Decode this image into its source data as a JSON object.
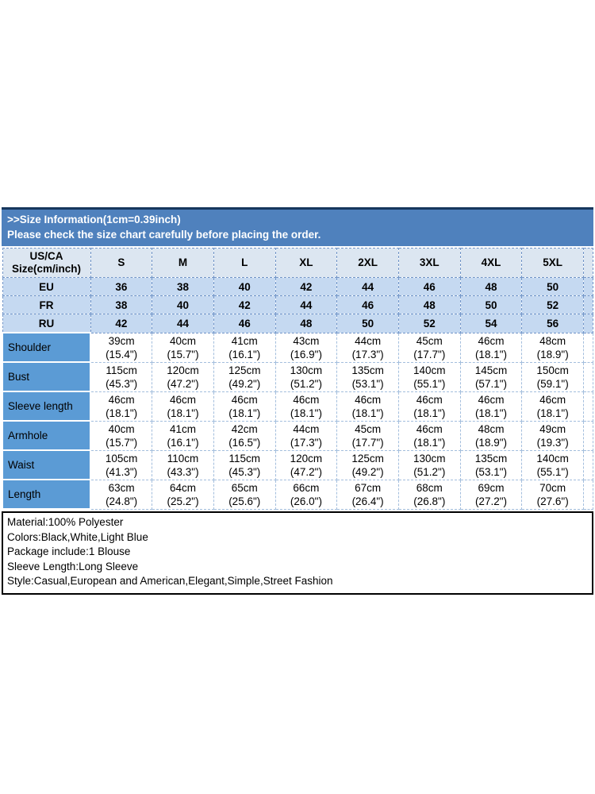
{
  "banner": {
    "line1": ">>Size Information(1cm=0.39inch)",
    "line2": "Please check the size chart carefully before placing the order."
  },
  "table": {
    "corner": {
      "line1": "US/CA",
      "line2": "Size(cm/inch)"
    },
    "sizes": [
      "S",
      "M",
      "L",
      "XL",
      "2XL",
      "3XL",
      "4XL",
      "5XL"
    ],
    "region_rows": [
      {
        "label": "EU",
        "values": [
          "36",
          "38",
          "40",
          "42",
          "44",
          "46",
          "48",
          "50"
        ]
      },
      {
        "label": "FR",
        "values": [
          "38",
          "40",
          "42",
          "44",
          "46",
          "48",
          "50",
          "52"
        ]
      },
      {
        "label": "RU",
        "values": [
          "42",
          "44",
          "46",
          "48",
          "50",
          "52",
          "54",
          "56"
        ]
      }
    ],
    "measurement_rows": [
      {
        "label": "Shoulder",
        "cm": [
          "39cm",
          "40cm",
          "41cm",
          "43cm",
          "44cm",
          "45cm",
          "46cm",
          "48cm"
        ],
        "inch": [
          "(15.4\")",
          "(15.7\")",
          "(16.1\")",
          "(16.9\")",
          "(17.3\")",
          "(17.7\")",
          "(18.1\")",
          "(18.9\")"
        ]
      },
      {
        "label": "Bust",
        "cm": [
          "115cm",
          "120cm",
          "125cm",
          "130cm",
          "135cm",
          "140cm",
          "145cm",
          "150cm"
        ],
        "inch": [
          "(45.3\")",
          "(47.2\")",
          "(49.2\")",
          "(51.2\")",
          "(53.1\")",
          "(55.1\")",
          "(57.1\")",
          "(59.1\")"
        ]
      },
      {
        "label": "Sleeve length",
        "cm": [
          "46cm",
          "46cm",
          "46cm",
          "46cm",
          "46cm",
          "46cm",
          "46cm",
          "46cm"
        ],
        "inch": [
          "(18.1\")",
          "(18.1\")",
          "(18.1\")",
          "(18.1\")",
          "(18.1\")",
          "(18.1\")",
          "(18.1\")",
          "(18.1\")"
        ]
      },
      {
        "label": "Armhole",
        "cm": [
          "40cm",
          "41cm",
          "42cm",
          "44cm",
          "45cm",
          "46cm",
          "48cm",
          "49cm"
        ],
        "inch": [
          "(15.7\")",
          "(16.1\")",
          "(16.5\")",
          "(17.3\")",
          "(17.7\")",
          "(18.1\")",
          "(18.9\")",
          "(19.3\")"
        ]
      },
      {
        "label": "Waist",
        "cm": [
          "105cm",
          "110cm",
          "115cm",
          "120cm",
          "125cm",
          "130cm",
          "135cm",
          "140cm"
        ],
        "inch": [
          "(41.3\")",
          "(43.3\")",
          "(45.3\")",
          "(47.2\")",
          "(49.2\")",
          "(51.2\")",
          "(53.1\")",
          "(55.1\")"
        ]
      },
      {
        "label": "Length",
        "cm": [
          "63cm",
          "64cm",
          "65cm",
          "66cm",
          "67cm",
          "68cm",
          "69cm",
          "70cm"
        ],
        "inch": [
          "(24.8\")",
          "(25.2\")",
          "(25.6\")",
          "(26.0\")",
          "(26.4\")",
          "(26.8\")",
          "(27.2\")",
          "(27.6\")"
        ]
      }
    ]
  },
  "details": {
    "lines": [
      "Material:100% Polyester",
      "Colors:Black,White,Light Blue",
      "Package include:1 Blouse",
      "Sleeve Length:Long Sleeve",
      "Style:Casual,European and American,Elegant,Simple,Street Fashion"
    ]
  },
  "colors": {
    "banner_bg": "#4f81bd",
    "banner_top_line": "#17375d",
    "header_row_bg": "#dce6f1",
    "region_row_bg": "#c5d9f1",
    "label_col_bg": "#5b9bd5",
    "grid_dash": "#7396c8",
    "measure_dash": "#a3bedd",
    "details_border": "#000000"
  }
}
